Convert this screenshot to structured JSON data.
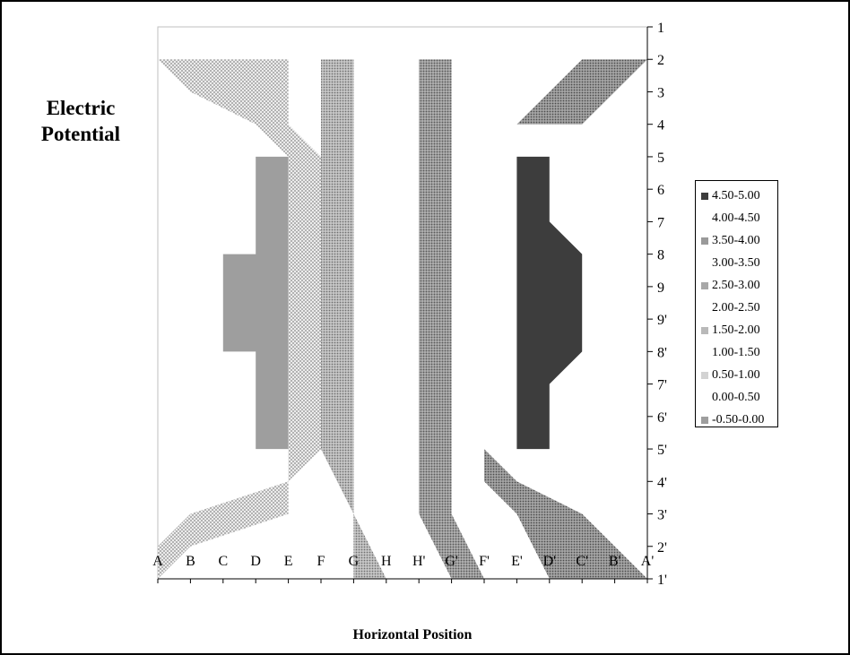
{
  "chart_data": {
    "type": "heatmap",
    "title_lines": [
      "Electric",
      "Potential"
    ],
    "xlabel": "Horizontal Position",
    "ylabel": "",
    "x_categories": [
      "A",
      "B",
      "C",
      "D",
      "E",
      "F",
      "G",
      "H",
      "H'",
      "G'",
      "F'",
      "E'",
      "D'",
      "C'",
      "B'",
      "A'"
    ],
    "y_categories": [
      "1",
      "2",
      "3",
      "4",
      "5",
      "6",
      "7",
      "8",
      "9",
      "9'",
      "8'",
      "7'",
      "6'",
      "5'",
      "4'",
      "3'",
      "2'",
      "1'"
    ],
    "legend_position": "right",
    "legend": [
      {
        "label": "4.50-5.00",
        "color": "#3d3d3d"
      },
      {
        "label": "4.00-4.50",
        "color": "#ffffff"
      },
      {
        "label": "3.50-4.00",
        "color": "#9a9a9a"
      },
      {
        "label": "3.00-3.50",
        "color": "#ffffff"
      },
      {
        "label": "2.50-3.00",
        "color": "#a8a8a8"
      },
      {
        "label": "2.00-2.50",
        "color": "#ffffff"
      },
      {
        "label": "1.50-2.00",
        "color": "#b9b9b9"
      },
      {
        "label": "1.00-1.50",
        "color": "#ffffff"
      },
      {
        "label": "0.50-1.00",
        "color": "#d3d3d3"
      },
      {
        "label": "0.00-0.50",
        "color": "#ffffff"
      },
      {
        "label": "-0.50-0.00",
        "color": "#9e9e9e"
      }
    ],
    "regions": [
      {
        "band": "-0.50-0.00",
        "polygon": [
          [
            "D",
            4
          ],
          [
            "E",
            4
          ],
          [
            "E",
            13
          ],
          [
            "D",
            13
          ],
          [
            "D",
            10
          ],
          [
            "C",
            10
          ],
          [
            "C",
            7
          ],
          [
            "D",
            7
          ]
        ]
      },
      {
        "band": "4.50-5.00",
        "polygon": [
          [
            "E'",
            4
          ],
          [
            "D'",
            4
          ],
          [
            "D'",
            6
          ],
          [
            "C'",
            7
          ],
          [
            "C'",
            10
          ],
          [
            "D'",
            11
          ],
          [
            "D'",
            13
          ],
          [
            "E'",
            13
          ]
        ]
      },
      {
        "band": "0.50-1.00",
        "polygon": [
          [
            "A",
            1
          ],
          [
            "E",
            1
          ],
          [
            "E",
            3
          ],
          [
            "F",
            4
          ],
          [
            "F",
            13
          ],
          [
            "E",
            14
          ],
          [
            "E",
            15
          ],
          [
            "B",
            16
          ],
          [
            "A",
            17
          ],
          [
            "A",
            17
          ],
          [
            "A",
            16
          ],
          [
            "B",
            15
          ],
          [
            "E",
            14
          ],
          [
            "E",
            13
          ],
          [
            "E",
            4
          ],
          [
            "D",
            3
          ],
          [
            "B",
            2
          ],
          [
            "A",
            1
          ]
        ]
      },
      {
        "band": "1.50-2.00",
        "polygon": [
          [
            "F",
            1
          ],
          [
            "G",
            1
          ],
          [
            "G",
            4
          ],
          [
            "G",
            13
          ],
          [
            "G",
            15
          ],
          [
            "H",
            17
          ],
          [
            "G",
            17
          ],
          [
            "G",
            15
          ],
          [
            "F",
            13
          ],
          [
            "F",
            4
          ],
          [
            "F",
            2
          ]
        ]
      },
      {
        "band": "2.50-3.00",
        "polygon": [
          [
            "H'",
            1
          ],
          [
            "G'",
            1
          ],
          [
            "G'",
            4
          ],
          [
            "G'",
            13
          ],
          [
            "G'",
            15
          ],
          [
            "F'",
            17
          ],
          [
            "G'",
            17
          ],
          [
            "H'",
            15
          ],
          [
            "H'",
            4
          ]
        ]
      },
      {
        "band": "3.50-4.00",
        "polygon": [
          [
            "C'",
            1
          ],
          [
            "A'",
            1
          ],
          [
            "B'",
            2
          ],
          [
            "C'",
            3
          ],
          [
            "E'",
            3
          ],
          [
            "F'",
            4
          ],
          [
            "F'",
            13
          ],
          [
            "E'",
            14
          ],
          [
            "C'",
            15
          ],
          [
            "B'",
            16
          ],
          [
            "A'",
            17
          ],
          [
            "D'",
            17
          ],
          [
            "E'",
            15
          ],
          [
            "F'",
            14
          ],
          [
            "F'",
            13
          ],
          [
            "F'",
            4
          ],
          [
            "E'",
            3
          ],
          [
            "D'",
            2
          ]
        ]
      }
    ]
  }
}
